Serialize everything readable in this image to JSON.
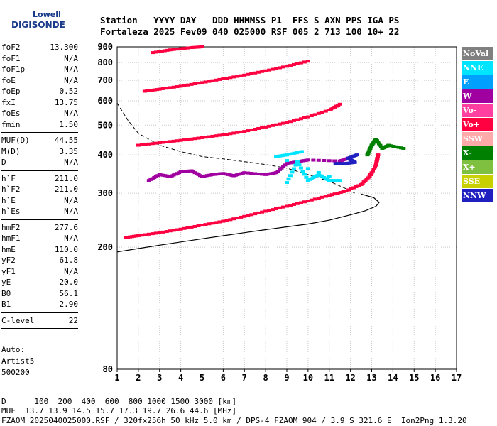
{
  "logo": {
    "line1": "Lowell",
    "line2": "DIGISONDE"
  },
  "header": {
    "row1": "Station   YYYY DAY   DDD HHMMSS P1  FFS S AXN PPS IGA PS",
    "row2": "Fortaleza 2025 Fev09 040 025000 RSF 005 2 713 100 10+ 22"
  },
  "params": [
    [
      [
        "foF2",
        "13.300"
      ],
      [
        "foF1",
        "N/A"
      ],
      [
        "foF1p",
        "N/A"
      ],
      [
        "foE",
        "N/A"
      ],
      [
        "foEp",
        "0.52"
      ],
      [
        "fxI",
        "13.75"
      ],
      [
        "foEs",
        "N/A"
      ],
      [
        "fmin",
        "1.50"
      ]
    ],
    [
      [
        "MUF(D)",
        "44.55"
      ],
      [
        "M(D)",
        "3.35"
      ],
      [
        "D",
        "N/A"
      ]
    ],
    [
      [
        "h`F",
        "211.0"
      ],
      [
        "h`F2",
        "211.0"
      ],
      [
        "h`E",
        "N/A"
      ],
      [
        "h`Es",
        "N/A"
      ]
    ],
    [
      [
        "hmF2",
        "277.6"
      ],
      [
        "hmF1",
        "N/A"
      ],
      [
        "hmE",
        "110.0"
      ],
      [
        "yF2",
        "61.8"
      ],
      [
        "yF1",
        "N/A"
      ],
      [
        "yE",
        "20.0"
      ],
      [
        "B0",
        "56.1"
      ],
      [
        "B1",
        "2.90"
      ]
    ],
    [
      [
        "C-level",
        "22"
      ]
    ]
  ],
  "auto": {
    "line1": "Auto:",
    "line2": "Artist5",
    "line3": "500200"
  },
  "bottom": {
    "d_row": "D      100  200  400  600  800 1000 1500 3000 [km]",
    "muf_row": "MUF  13.7 13.9 14.5 15.7 17.3 19.7 26.6 44.6 [MHz]",
    "file_row": "FZAOM_2025040025000.RSF / 320fx256h 50 kHz 5.0 km / DPS-4 FZAOM 904 / 3.9 S 321.6 E  Ion2Png 1.3.20"
  },
  "legend": [
    {
      "label": "NoVal",
      "color": "#808080"
    },
    {
      "label": "NNE",
      "color": "#00e5ff"
    },
    {
      "label": "E",
      "color": "#00a0ff"
    },
    {
      "label": "W",
      "color": "#a000a0"
    },
    {
      "label": "Vo-",
      "color": "#ff40a0"
    },
    {
      "label": "Vo+",
      "color": "#ff0040"
    },
    {
      "label": "SSW",
      "color": "#ffaaaa"
    },
    {
      "label": "X-",
      "color": "#008000"
    },
    {
      "label": "X+",
      "color": "#80c040"
    },
    {
      "label": "SSE",
      "color": "#c8d000"
    },
    {
      "label": "NNW",
      "color": "#2020c0"
    }
  ],
  "chart_data": {
    "type": "scatter",
    "xlim": [
      1,
      17
    ],
    "ylim": [
      80,
      900
    ],
    "ylog": true,
    "x_ticks": [
      1,
      2,
      3,
      4,
      5,
      6,
      7,
      8,
      9,
      10,
      11,
      12,
      13,
      14,
      15,
      16,
      17
    ],
    "y_ticks": [
      80,
      200,
      300,
      400,
      500,
      600,
      700,
      800,
      900
    ],
    "grid": true,
    "traces": [
      {
        "name": "Vo+",
        "color": "#ff0040",
        "points": [
          [
            1.4,
            215
          ],
          [
            2,
            218
          ],
          [
            3,
            223
          ],
          [
            4,
            229
          ],
          [
            5,
            236
          ],
          [
            6,
            243
          ],
          [
            7,
            252
          ],
          [
            8,
            262
          ],
          [
            9,
            272
          ],
          [
            10,
            283
          ],
          [
            11,
            295
          ],
          [
            11.8,
            305
          ],
          [
            12.5,
            320
          ],
          [
            12.9,
            340
          ],
          [
            13.2,
            370
          ],
          [
            13.3,
            400
          ]
        ]
      },
      {
        "name": "Vo+",
        "color": "#ff0040",
        "points": [
          [
            2,
            430
          ],
          [
            3,
            438
          ],
          [
            4,
            446
          ],
          [
            5,
            455
          ],
          [
            6,
            465
          ],
          [
            7,
            477
          ],
          [
            8,
            493
          ],
          [
            9,
            510
          ],
          [
            10,
            532
          ],
          [
            11,
            560
          ],
          [
            11.5,
            585
          ]
        ]
      },
      {
        "name": "Vo+",
        "color": "#ff0040",
        "points": [
          [
            2.3,
            645
          ],
          [
            3,
            655
          ],
          [
            4,
            670
          ],
          [
            5,
            688
          ],
          [
            6,
            708
          ],
          [
            7,
            728
          ],
          [
            8,
            752
          ],
          [
            9,
            778
          ],
          [
            10,
            808
          ]
        ]
      },
      {
        "name": "Vo+",
        "color": "#ff0040",
        "points": [
          [
            2.7,
            862
          ],
          [
            3.5,
            880
          ],
          [
            4.5,
            895
          ],
          [
            5,
            900
          ]
        ]
      },
      {
        "name": "W",
        "color": "#a000a0",
        "points": [
          [
            2.5,
            330
          ],
          [
            3,
            345
          ],
          [
            3.5,
            340
          ],
          [
            4,
            352
          ],
          [
            4.5,
            355
          ],
          [
            5,
            340
          ],
          [
            5.5,
            345
          ],
          [
            6,
            348
          ],
          [
            6.5,
            342
          ],
          [
            7,
            350
          ],
          [
            8,
            345
          ],
          [
            8.5,
            350
          ],
          [
            9,
            375
          ],
          [
            9.5,
            380
          ],
          [
            10,
            385
          ],
          [
            11.5,
            382
          ],
          [
            12,
            392
          ]
        ]
      },
      {
        "name": "NNE",
        "color": "#00e5ff",
        "points": [
          [
            9,
            325
          ],
          [
            9.5,
            380
          ],
          [
            10,
            330
          ],
          [
            10.5,
            345
          ],
          [
            11,
            330
          ],
          [
            11.5,
            330
          ],
          [
            8.5,
            395
          ],
          [
            9,
            400
          ],
          [
            9.7,
            410
          ]
        ]
      },
      {
        "name": "NNW",
        "color": "#2020c0",
        "points": [
          [
            11.3,
            375
          ],
          [
            11.8,
            375
          ],
          [
            12.2,
            378
          ],
          [
            11.9,
            390
          ],
          [
            12.3,
            400
          ]
        ]
      },
      {
        "name": "X-",
        "color": "#008000",
        "points": [
          [
            12.8,
            400
          ],
          [
            13,
            430
          ],
          [
            13.2,
            450
          ],
          [
            13.5,
            420
          ],
          [
            13.8,
            430
          ],
          [
            14.5,
            420
          ]
        ]
      }
    ],
    "profile_solid": [
      [
        1,
        193
      ],
      [
        2,
        198
      ],
      [
        3,
        203
      ],
      [
        4,
        208
      ],
      [
        5,
        213
      ],
      [
        6,
        218
      ],
      [
        7,
        223
      ],
      [
        8,
        228
      ],
      [
        9,
        233
      ],
      [
        10,
        238
      ],
      [
        11,
        245
      ],
      [
        12,
        255
      ],
      [
        12.7,
        263
      ],
      [
        13.2,
        272
      ],
      [
        13.35,
        280
      ],
      [
        13.1,
        290
      ],
      [
        12.5,
        298
      ]
    ],
    "profile_dashed": [
      [
        1,
        590
      ],
      [
        1.5,
        520
      ],
      [
        2,
        470
      ],
      [
        3,
        430
      ],
      [
        4,
        410
      ],
      [
        5,
        395
      ],
      [
        6,
        388
      ],
      [
        7,
        380
      ],
      [
        8,
        372
      ],
      [
        9,
        362
      ],
      [
        10,
        345
      ],
      [
        11,
        328
      ],
      [
        11.8,
        310
      ],
      [
        12.2,
        300
      ]
    ]
  }
}
